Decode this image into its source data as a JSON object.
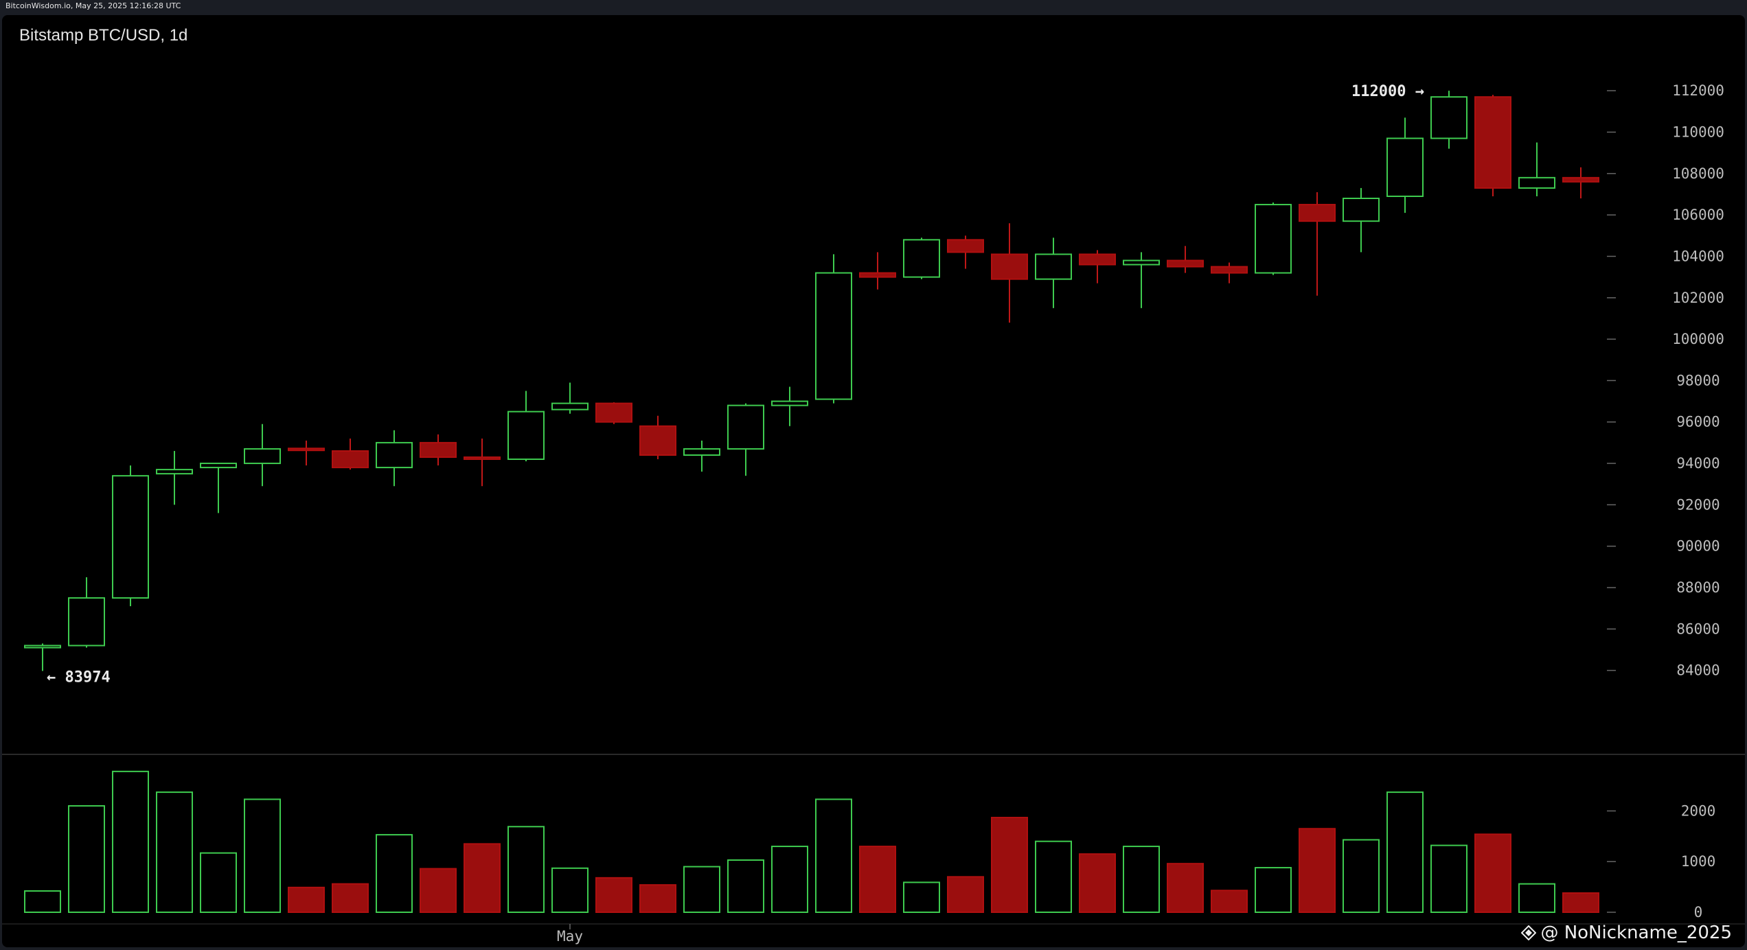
{
  "header": {
    "timestamp": "BitcoinWisdom.io, May 25, 2025 12:16:28 UTC"
  },
  "chart_title": "Bitstamp BTC/USD, 1d",
  "watermark": {
    "text": "@ NoNickname_2025",
    "icon": "diamond-logo-icon"
  },
  "colors": {
    "up": "#3ecb4f",
    "down": "#b01010",
    "down_fill": "#9b0e0e",
    "grid_text": "#bdbdbd",
    "background": "#000000"
  },
  "chart_data": {
    "type": "candlestick",
    "title": "Bitstamp BTC/USD, 1d",
    "ylim": [
      82000,
      113000
    ],
    "y_ticks": [
      84000,
      86000,
      88000,
      90000,
      92000,
      94000,
      96000,
      98000,
      100000,
      102000,
      104000,
      106000,
      108000,
      110000,
      112000
    ],
    "x_tick_labels": [
      {
        "index": 12,
        "label": "May"
      }
    ],
    "annotations": [
      {
        "text": "112000 →",
        "index": 32
      },
      {
        "text": "← 83974",
        "index": 0
      }
    ],
    "candles": [
      {
        "o": 85100,
        "h": 85300,
        "l": 83974,
        "c": 85200,
        "v": 420
      },
      {
        "o": 85200,
        "h": 88500,
        "l": 85100,
        "c": 87500,
        "v": 2100
      },
      {
        "o": 87500,
        "h": 93900,
        "l": 87100,
        "c": 93400,
        "v": 2780
      },
      {
        "o": 93500,
        "h": 94600,
        "l": 92000,
        "c": 93700,
        "v": 2370
      },
      {
        "o": 93800,
        "h": 93900,
        "l": 91600,
        "c": 94000,
        "v": 1170
      },
      {
        "o": 94000,
        "h": 95900,
        "l": 92900,
        "c": 94700,
        "v": 2230
      },
      {
        "o": 94700,
        "h": 95100,
        "l": 93900,
        "c": 94650,
        "v": 490
      },
      {
        "o": 94600,
        "h": 95200,
        "l": 93700,
        "c": 93800,
        "v": 560
      },
      {
        "o": 93800,
        "h": 95600,
        "l": 92900,
        "c": 95000,
        "v": 1530
      },
      {
        "o": 95000,
        "h": 95400,
        "l": 93900,
        "c": 94300,
        "v": 860
      },
      {
        "o": 94300,
        "h": 95200,
        "l": 92900,
        "c": 94200,
        "v": 1350
      },
      {
        "o": 94200,
        "h": 97500,
        "l": 94100,
        "c": 96500,
        "v": 1690
      },
      {
        "o": 96600,
        "h": 97900,
        "l": 96400,
        "c": 96900,
        "v": 870
      },
      {
        "o": 96900,
        "h": 96950,
        "l": 95900,
        "c": 96000,
        "v": 680
      },
      {
        "o": 95800,
        "h": 96300,
        "l": 94200,
        "c": 94400,
        "v": 540
      },
      {
        "o": 94400,
        "h": 95100,
        "l": 93600,
        "c": 94700,
        "v": 900
      },
      {
        "o": 94700,
        "h": 96900,
        "l": 93400,
        "c": 96800,
        "v": 1030
      },
      {
        "o": 96800,
        "h": 97700,
        "l": 95800,
        "c": 97000,
        "v": 1300
      },
      {
        "o": 97100,
        "h": 104100,
        "l": 96900,
        "c": 103200,
        "v": 2230
      },
      {
        "o": 103200,
        "h": 104200,
        "l": 102400,
        "c": 103000,
        "v": 1300
      },
      {
        "o": 103000,
        "h": 104900,
        "l": 102900,
        "c": 104800,
        "v": 590
      },
      {
        "o": 104800,
        "h": 105000,
        "l": 103400,
        "c": 104200,
        "v": 700
      },
      {
        "o": 104100,
        "h": 105600,
        "l": 100800,
        "c": 102900,
        "v": 1870
      },
      {
        "o": 102900,
        "h": 104900,
        "l": 101500,
        "c": 104100,
        "v": 1400
      },
      {
        "o": 104100,
        "h": 104300,
        "l": 102700,
        "c": 103600,
        "v": 1150
      },
      {
        "o": 103600,
        "h": 104200,
        "l": 101500,
        "c": 103800,
        "v": 1300
      },
      {
        "o": 103800,
        "h": 104500,
        "l": 103200,
        "c": 103500,
        "v": 960
      },
      {
        "o": 103500,
        "h": 103700,
        "l": 102700,
        "c": 103200,
        "v": 430
      },
      {
        "o": 103200,
        "h": 106600,
        "l": 103100,
        "c": 106500,
        "v": 880
      },
      {
        "o": 106500,
        "h": 107100,
        "l": 102100,
        "c": 105700,
        "v": 1650
      },
      {
        "o": 105700,
        "h": 107300,
        "l": 104200,
        "c": 106800,
        "v": 1430
      },
      {
        "o": 106900,
        "h": 110700,
        "l": 106100,
        "c": 109700,
        "v": 2370
      },
      {
        "o": 109700,
        "h": 112000,
        "l": 109200,
        "c": 111700,
        "v": 1320
      },
      {
        "o": 111700,
        "h": 111800,
        "l": 106900,
        "c": 107300,
        "v": 1540
      },
      {
        "o": 107300,
        "h": 109500,
        "l": 106900,
        "c": 107800,
        "v": 560
      },
      {
        "o": 107800,
        "h": 108300,
        "l": 106800,
        "c": 107600,
        "v": 380
      }
    ],
    "volume_ylim": [
      0,
      2900
    ],
    "volume_ticks": [
      0,
      1000,
      2000
    ]
  }
}
